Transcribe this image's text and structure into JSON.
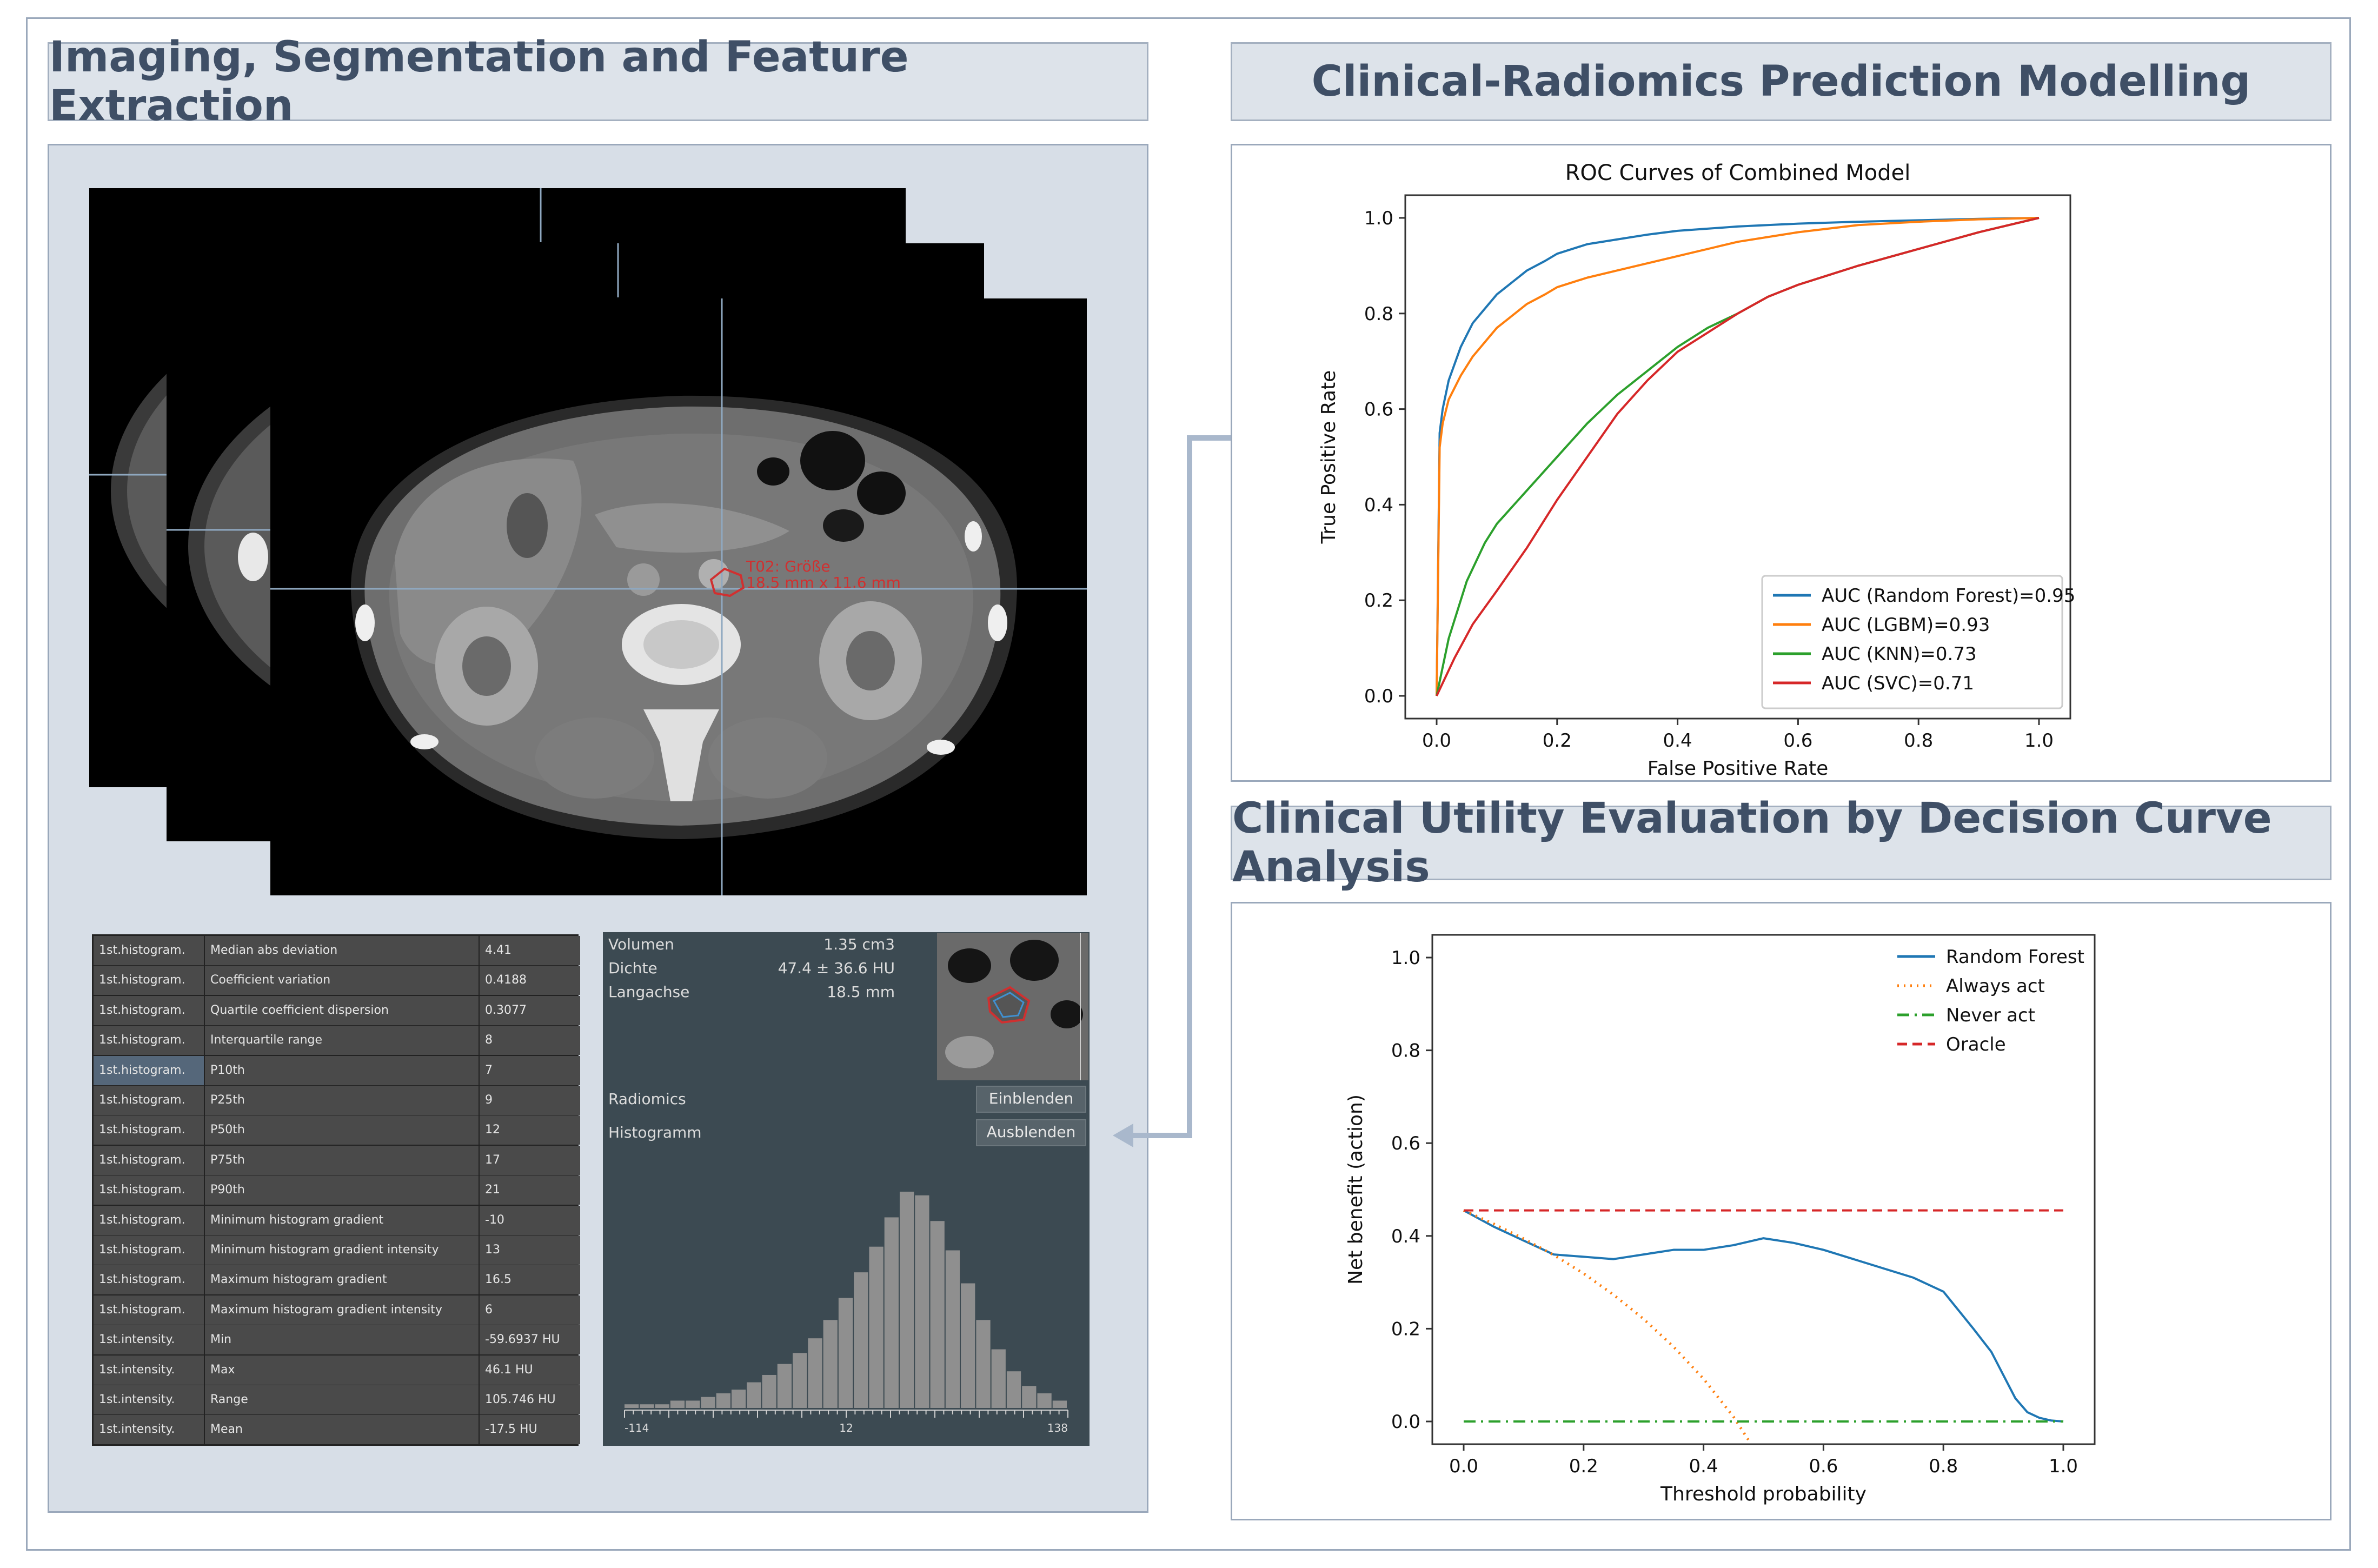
{
  "headers": {
    "imaging": "Imaging, Segmentation and Feature Extraction",
    "prediction": "Clinical-Radiomics Prediction Modelling",
    "utility": "Clinical Utility Evaluation by Decision Curve Analysis"
  },
  "ct": {
    "annotation_line1": "T02: Größe",
    "annotation_line2": "18.5 mm x 11.6 mm"
  },
  "features": [
    {
      "group": "1st.histogram.",
      "name": "Median abs deviation",
      "value": "4.41"
    },
    {
      "group": "1st.histogram.",
      "name": "Coefficient variation",
      "value": "0.4188"
    },
    {
      "group": "1st.histogram.",
      "name": "Quartile coefficient dispersion",
      "value": "0.3077"
    },
    {
      "group": "1st.histogram.",
      "name": "Interquartile range",
      "value": "8"
    },
    {
      "group": "1st.histogram.",
      "name": "P10th",
      "value": "7"
    },
    {
      "group": "1st.histogram.",
      "name": "P25th",
      "value": "9"
    },
    {
      "group": "1st.histogram.",
      "name": "P50th",
      "value": "12"
    },
    {
      "group": "1st.histogram.",
      "name": "P75th",
      "value": "17"
    },
    {
      "group": "1st.histogram.",
      "name": "P90th",
      "value": "21"
    },
    {
      "group": "1st.histogram.",
      "name": "Minimum histogram gradient",
      "value": "-10"
    },
    {
      "group": "1st.histogram.",
      "name": "Minimum histogram gradient intensity",
      "value": "13"
    },
    {
      "group": "1st.histogram.",
      "name": "Maximum histogram gradient",
      "value": "16.5"
    },
    {
      "group": "1st.histogram.",
      "name": "Maximum histogram gradient intensity",
      "value": "6"
    },
    {
      "group": "1st.intensity.",
      "name": "Min",
      "value": "-59.6937 HU"
    },
    {
      "group": "1st.intensity.",
      "name": "Max",
      "value": "46.1 HU"
    },
    {
      "group": "1st.intensity.",
      "name": "Range",
      "value": "105.746 HU"
    },
    {
      "group": "1st.intensity.",
      "name": "Mean",
      "value": "-17.5 HU"
    }
  ],
  "segmentation": {
    "volume_label": "Volumen",
    "volume_value": "1.35 cm3",
    "density_label": "Dichte",
    "density_value": "47.4 ± 36.6 HU",
    "axis_label": "Langachse",
    "axis_value": "18.5 mm",
    "radiomics_label": "Radiomics",
    "radiomics_button": "Einblenden",
    "histogram_label": "Histogramm",
    "histogram_button": "Ausblenden",
    "hist_ticks": [
      "-114",
      "12",
      "138"
    ],
    "hist_counts": [
      1,
      1,
      1,
      2,
      2,
      3,
      4,
      5,
      7,
      9,
      12,
      15,
      19,
      24,
      30,
      37,
      44,
      52,
      59,
      58,
      51,
      43,
      34,
      24,
      16,
      10,
      6,
      4,
      2
    ]
  },
  "chart_data": [
    {
      "type": "line",
      "title": "ROC Curves of Combined Model",
      "xlabel": "False Positive Rate",
      "ylabel": "True Positive Rate",
      "xlim": [
        0,
        1
      ],
      "ylim": [
        0,
        1
      ],
      "ticks": [
        "0.0",
        "0.2",
        "0.4",
        "0.6",
        "0.8",
        "1.0"
      ],
      "legend_position": "lower-right",
      "series": [
        {
          "name": "AUC (Random Forest)=0.95",
          "color": "#1f77b4",
          "x": [
            0,
            0.005,
            0.01,
            0.02,
            0.04,
            0.06,
            0.08,
            0.1,
            0.12,
            0.15,
            0.18,
            0.2,
            0.25,
            0.3,
            0.35,
            0.4,
            0.5,
            0.6,
            0.7,
            0.8,
            0.9,
            1.0
          ],
          "y": [
            0,
            0.55,
            0.6,
            0.66,
            0.73,
            0.78,
            0.81,
            0.84,
            0.86,
            0.89,
            0.91,
            0.925,
            0.945,
            0.955,
            0.965,
            0.973,
            0.982,
            0.988,
            0.992,
            0.995,
            0.998,
            1.0
          ]
        },
        {
          "name": "AUC (LGBM)=0.93",
          "color": "#ff7f0e",
          "x": [
            0,
            0.005,
            0.01,
            0.02,
            0.04,
            0.06,
            0.08,
            0.1,
            0.12,
            0.15,
            0.18,
            0.2,
            0.25,
            0.3,
            0.35,
            0.4,
            0.5,
            0.6,
            0.7,
            0.8,
            0.9,
            1.0
          ],
          "y": [
            0,
            0.52,
            0.57,
            0.62,
            0.67,
            0.71,
            0.74,
            0.77,
            0.79,
            0.82,
            0.84,
            0.855,
            0.875,
            0.89,
            0.905,
            0.92,
            0.95,
            0.97,
            0.985,
            0.992,
            0.997,
            1.0
          ]
        },
        {
          "name": "AUC (KNN)=0.73",
          "color": "#2ca02c",
          "x": [
            0,
            0.02,
            0.05,
            0.08,
            0.1,
            0.15,
            0.2,
            0.25,
            0.3,
            0.35,
            0.4,
            0.45,
            0.5,
            0.55,
            0.6,
            0.65,
            0.7,
            0.8,
            0.9,
            1.0
          ],
          "y": [
            0,
            0.12,
            0.24,
            0.32,
            0.36,
            0.43,
            0.5,
            0.57,
            0.63,
            0.68,
            0.73,
            0.77,
            0.8,
            0.835,
            0.86,
            0.88,
            0.9,
            0.935,
            0.97,
            1.0
          ]
        },
        {
          "name": "AUC (SVC)=0.71",
          "color": "#d62728",
          "x": [
            0,
            0.03,
            0.06,
            0.1,
            0.15,
            0.2,
            0.25,
            0.3,
            0.35,
            0.4,
            0.45,
            0.5,
            0.55,
            0.6,
            0.65,
            0.7,
            0.8,
            0.9,
            1.0
          ],
          "y": [
            0,
            0.08,
            0.15,
            0.22,
            0.31,
            0.41,
            0.5,
            0.59,
            0.66,
            0.72,
            0.76,
            0.8,
            0.835,
            0.86,
            0.88,
            0.9,
            0.935,
            0.97,
            1.0
          ]
        }
      ]
    },
    {
      "type": "line",
      "title": "",
      "xlabel": "Threshold probability",
      "ylabel": "Net benefit (action)",
      "xlim": [
        0,
        1
      ],
      "ylim": [
        0,
        1
      ],
      "ticks": [
        "0.0",
        "0.2",
        "0.4",
        "0.6",
        "0.8",
        "1.0"
      ],
      "legend_position": "top-right",
      "series": [
        {
          "name": "Random Forest",
          "color": "#1f77b4",
          "style": "solid",
          "x": [
            0,
            0.05,
            0.1,
            0.15,
            0.2,
            0.25,
            0.3,
            0.35,
            0.4,
            0.45,
            0.5,
            0.55,
            0.6,
            0.65,
            0.7,
            0.75,
            0.8,
            0.85,
            0.88,
            0.9,
            0.92,
            0.94,
            0.96,
            0.98,
            1.0
          ],
          "y": [
            0.455,
            0.42,
            0.39,
            0.36,
            0.355,
            0.35,
            0.36,
            0.37,
            0.37,
            0.38,
            0.395,
            0.385,
            0.37,
            0.35,
            0.33,
            0.31,
            0.28,
            0.2,
            0.15,
            0.1,
            0.05,
            0.02,
            0.008,
            0.002,
            0.0
          ]
        },
        {
          "name": "Always act",
          "color": "#ff7f0e",
          "style": "dotted",
          "x": [
            0,
            0.05,
            0.1,
            0.15,
            0.2,
            0.25,
            0.3,
            0.35,
            0.4,
            0.45,
            0.475
          ],
          "y": [
            0.455,
            0.426,
            0.394,
            0.359,
            0.319,
            0.273,
            0.221,
            0.161,
            0.092,
            0.01,
            -0.04
          ]
        },
        {
          "name": "Never act",
          "color": "#2ca02c",
          "style": "dashdot",
          "x": [
            0,
            1
          ],
          "y": [
            0,
            0
          ]
        },
        {
          "name": "Oracle",
          "color": "#d62728",
          "style": "dashed",
          "x": [
            0,
            1
          ],
          "y": [
            0.455,
            0.455
          ]
        }
      ]
    }
  ]
}
